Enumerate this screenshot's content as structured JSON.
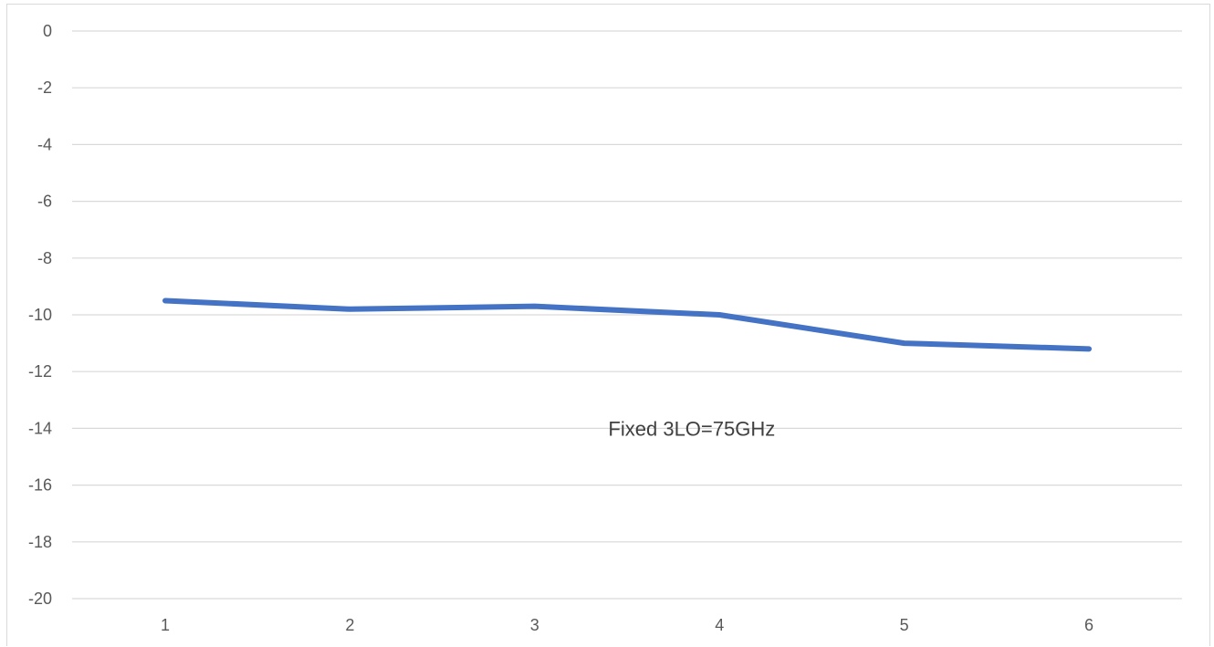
{
  "chart_data": {
    "type": "line",
    "categories": [
      "1",
      "2",
      "3",
      "4",
      "5",
      "6"
    ],
    "series": [
      {
        "values": [
          -9.5,
          -9.8,
          -9.7,
          -10.0,
          -11.0,
          -11.2
        ],
        "color": "#4472c4"
      }
    ],
    "ylim": [
      -20,
      0
    ],
    "yticks": [
      0,
      -2,
      -4,
      -6,
      -8,
      -10,
      -12,
      -14,
      -16,
      -18,
      -20
    ],
    "grid": true,
    "annotations": [
      {
        "text": "Fixed 3LO=75GHz",
        "x": 3.85,
        "y": -14
      }
    ]
  }
}
